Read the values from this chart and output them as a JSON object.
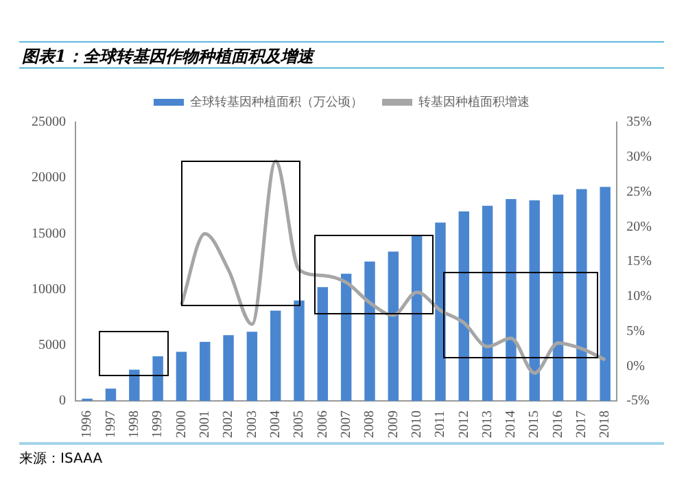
{
  "chart_data": {
    "type": "bar",
    "title": "图表1：全球转基因作物种植面积及增速",
    "categories": [
      "1996",
      "1997",
      "1998",
      "1999",
      "2000",
      "2001",
      "2002",
      "2003",
      "2004",
      "2005",
      "2006",
      "2007",
      "2008",
      "2009",
      "2010",
      "2011",
      "2012",
      "2013",
      "2014",
      "2015",
      "2016",
      "2017",
      "2018"
    ],
    "series": [
      {
        "name": "全球转基因种植面积（万公顷）",
        "color": "#4a86d0",
        "values": [
          200,
          1100,
          2800,
          4000,
          4400,
          5300,
          5900,
          6200,
          8100,
          9000,
          10200,
          11400,
          12500,
          13400,
          14800,
          16000,
          17000,
          17500,
          18100,
          18000,
          18500,
          19000,
          19200
        ]
      },
      {
        "name": "转基因种植面积增速",
        "type": "line",
        "axis": "y2",
        "color": "#a6a6a6",
        "values": [
          null,
          null,
          null,
          null,
          8.8,
          19,
          13.8,
          6,
          29.4,
          13.8,
          13,
          12,
          9.1,
          7.3,
          10.6,
          8,
          6.2,
          2.8,
          4,
          -1,
          3.3,
          2.5,
          0.9
        ]
      }
    ],
    "ylim": [
      0,
      25000
    ],
    "yticks": [
      0,
      5000,
      10000,
      15000,
      20000,
      25000
    ],
    "y2lim": [
      -5,
      35
    ],
    "y2ticks": [
      {
        "value": -5,
        "label": "-5%"
      },
      {
        "value": 0,
        "label": "0%"
      },
      {
        "value": 5,
        "label": "5%"
      },
      {
        "value": 10,
        "label": "10%"
      },
      {
        "value": 15,
        "label": "15%"
      },
      {
        "value": 20,
        "label": "20%"
      },
      {
        "value": 25,
        "label": "25%"
      },
      {
        "value": 30,
        "label": "30%"
      },
      {
        "value": 35,
        "label": "35%"
      }
    ],
    "legend": "top",
    "grid": false,
    "marker": "none",
    "line_style": "solid",
    "annotations": [
      "来源：ISAAA"
    ]
  }
}
